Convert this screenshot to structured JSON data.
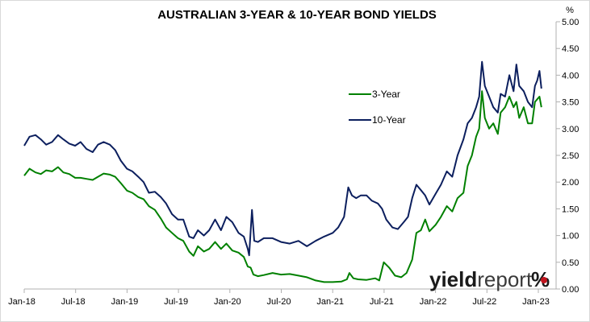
{
  "chart_data": {
    "type": "line",
    "title": "AUSTRALIAN 3-YEAR & 10-YEAR BOND YIELDS",
    "y_unit": "%",
    "xlabel": "",
    "ylabel": "",
    "ylim": [
      0,
      5
    ],
    "y_ticks": [
      "0.00",
      "0.50",
      "1.00",
      "1.50",
      "2.00",
      "2.50",
      "3.00",
      "3.50",
      "4.00",
      "4.50",
      "5.00"
    ],
    "x_ticks": [
      "Jan-18",
      "Jul-18",
      "Jan-19",
      "Jul-19",
      "Jan-20",
      "Jul-20",
      "Jan-21",
      "Jul-21",
      "Jan-22",
      "Jul-22",
      "Jan-23"
    ],
    "x_range": [
      "2018-01",
      "2023-01"
    ],
    "grid": false,
    "legend_position": "right-center",
    "colors": {
      "three_year": "#008000",
      "ten_year": "#0c1f5e",
      "logo_dark": "#1a1a1a",
      "logo_accent": "#c0141e"
    },
    "series": [
      {
        "name": "3-Year",
        "color": "#008000",
        "points": [
          [
            "2018-01-01",
            2.12
          ],
          [
            "2018-01-20",
            2.25
          ],
          [
            "2018-02-10",
            2.18
          ],
          [
            "2018-03-01",
            2.15
          ],
          [
            "2018-03-20",
            2.22
          ],
          [
            "2018-04-10",
            2.2
          ],
          [
            "2018-05-01",
            2.28
          ],
          [
            "2018-05-20",
            2.18
          ],
          [
            "2018-06-10",
            2.15
          ],
          [
            "2018-07-01",
            2.08
          ],
          [
            "2018-07-20",
            2.08
          ],
          [
            "2018-08-10",
            2.06
          ],
          [
            "2018-09-01",
            2.04
          ],
          [
            "2018-09-20",
            2.1
          ],
          [
            "2018-10-10",
            2.16
          ],
          [
            "2018-11-01",
            2.14
          ],
          [
            "2018-11-20",
            2.1
          ],
          [
            "2018-12-10",
            1.98
          ],
          [
            "2019-01-01",
            1.84
          ],
          [
            "2019-01-20",
            1.8
          ],
          [
            "2019-02-10",
            1.72
          ],
          [
            "2019-03-01",
            1.68
          ],
          [
            "2019-03-20",
            1.55
          ],
          [
            "2019-04-10",
            1.48
          ],
          [
            "2019-05-01",
            1.32
          ],
          [
            "2019-05-20",
            1.15
          ],
          [
            "2019-06-10",
            1.05
          ],
          [
            "2019-07-01",
            0.95
          ],
          [
            "2019-07-20",
            0.9
          ],
          [
            "2019-08-10",
            0.7
          ],
          [
            "2019-08-25",
            0.62
          ],
          [
            "2019-09-10",
            0.8
          ],
          [
            "2019-10-01",
            0.7
          ],
          [
            "2019-10-20",
            0.75
          ],
          [
            "2019-11-10",
            0.88
          ],
          [
            "2019-12-01",
            0.75
          ],
          [
            "2019-12-20",
            0.85
          ],
          [
            "2020-01-10",
            0.72
          ],
          [
            "2020-02-01",
            0.68
          ],
          [
            "2020-02-20",
            0.6
          ],
          [
            "2020-03-05",
            0.42
          ],
          [
            "2020-03-15",
            0.4
          ],
          [
            "2020-03-25",
            0.27
          ],
          [
            "2020-04-10",
            0.24
          ],
          [
            "2020-05-01",
            0.26
          ],
          [
            "2020-06-01",
            0.3
          ],
          [
            "2020-07-01",
            0.27
          ],
          [
            "2020-08-01",
            0.28
          ],
          [
            "2020-09-01",
            0.25
          ],
          [
            "2020-10-01",
            0.22
          ],
          [
            "2020-11-01",
            0.16
          ],
          [
            "2020-12-01",
            0.13
          ],
          [
            "2021-01-01",
            0.13
          ],
          [
            "2021-02-01",
            0.14
          ],
          [
            "2021-02-20",
            0.18
          ],
          [
            "2021-03-01",
            0.3
          ],
          [
            "2021-03-15",
            0.2
          ],
          [
            "2021-04-01",
            0.18
          ],
          [
            "2021-05-01",
            0.17
          ],
          [
            "2021-06-01",
            0.2
          ],
          [
            "2021-06-15",
            0.16
          ],
          [
            "2021-07-01",
            0.5
          ],
          [
            "2021-07-20",
            0.4
          ],
          [
            "2021-08-10",
            0.25
          ],
          [
            "2021-09-01",
            0.22
          ],
          [
            "2021-09-20",
            0.3
          ],
          [
            "2021-10-10",
            0.55
          ],
          [
            "2021-10-25",
            1.05
          ],
          [
            "2021-11-10",
            1.1
          ],
          [
            "2021-11-25",
            1.3
          ],
          [
            "2021-12-10",
            1.08
          ],
          [
            "2022-01-01",
            1.2
          ],
          [
            "2022-01-20",
            1.35
          ],
          [
            "2022-02-10",
            1.55
          ],
          [
            "2022-03-01",
            1.45
          ],
          [
            "2022-03-20",
            1.7
          ],
          [
            "2022-04-10",
            1.8
          ],
          [
            "2022-04-25",
            2.3
          ],
          [
            "2022-05-10",
            2.5
          ],
          [
            "2022-05-25",
            2.85
          ],
          [
            "2022-06-05",
            3.0
          ],
          [
            "2022-06-15",
            3.7
          ],
          [
            "2022-06-25",
            3.2
          ],
          [
            "2022-07-10",
            3.0
          ],
          [
            "2022-07-25",
            3.1
          ],
          [
            "2022-08-10",
            2.9
          ],
          [
            "2022-08-20",
            3.3
          ],
          [
            "2022-09-05",
            3.4
          ],
          [
            "2022-09-20",
            3.6
          ],
          [
            "2022-10-05",
            3.4
          ],
          [
            "2022-10-15",
            3.5
          ],
          [
            "2022-10-25",
            3.2
          ],
          [
            "2022-11-10",
            3.4
          ],
          [
            "2022-11-25",
            3.1
          ],
          [
            "2022-12-10",
            3.1
          ],
          [
            "2022-12-20",
            3.5
          ],
          [
            "2022-12-28",
            3.55
          ],
          [
            "2023-01-05",
            3.6
          ],
          [
            "2023-01-12",
            3.4
          ]
        ]
      },
      {
        "name": "10-Year",
        "color": "#0c1f5e",
        "points": [
          [
            "2018-01-01",
            2.68
          ],
          [
            "2018-01-20",
            2.85
          ],
          [
            "2018-02-10",
            2.88
          ],
          [
            "2018-03-01",
            2.8
          ],
          [
            "2018-03-20",
            2.7
          ],
          [
            "2018-04-10",
            2.75
          ],
          [
            "2018-05-01",
            2.88
          ],
          [
            "2018-05-20",
            2.8
          ],
          [
            "2018-06-10",
            2.72
          ],
          [
            "2018-07-01",
            2.68
          ],
          [
            "2018-07-20",
            2.75
          ],
          [
            "2018-08-10",
            2.62
          ],
          [
            "2018-09-01",
            2.56
          ],
          [
            "2018-09-20",
            2.7
          ],
          [
            "2018-10-10",
            2.75
          ],
          [
            "2018-11-01",
            2.7
          ],
          [
            "2018-11-20",
            2.6
          ],
          [
            "2018-12-10",
            2.4
          ],
          [
            "2019-01-01",
            2.25
          ],
          [
            "2019-01-20",
            2.2
          ],
          [
            "2019-02-10",
            2.1
          ],
          [
            "2019-03-01",
            2.0
          ],
          [
            "2019-03-20",
            1.8
          ],
          [
            "2019-04-10",
            1.82
          ],
          [
            "2019-05-01",
            1.72
          ],
          [
            "2019-05-20",
            1.6
          ],
          [
            "2019-06-10",
            1.4
          ],
          [
            "2019-07-01",
            1.3
          ],
          [
            "2019-07-20",
            1.3
          ],
          [
            "2019-08-10",
            0.98
          ],
          [
            "2019-08-25",
            0.95
          ],
          [
            "2019-09-10",
            1.1
          ],
          [
            "2019-10-01",
            1.0
          ],
          [
            "2019-10-20",
            1.1
          ],
          [
            "2019-11-10",
            1.3
          ],
          [
            "2019-12-01",
            1.1
          ],
          [
            "2019-12-20",
            1.35
          ],
          [
            "2020-01-10",
            1.25
          ],
          [
            "2020-02-01",
            1.05
          ],
          [
            "2020-02-20",
            0.98
          ],
          [
            "2020-03-05",
            0.75
          ],
          [
            "2020-03-10",
            0.63
          ],
          [
            "2020-03-20",
            1.48
          ],
          [
            "2020-03-28",
            0.9
          ],
          [
            "2020-04-10",
            0.88
          ],
          [
            "2020-05-01",
            0.95
          ],
          [
            "2020-06-01",
            0.95
          ],
          [
            "2020-07-01",
            0.88
          ],
          [
            "2020-08-01",
            0.85
          ],
          [
            "2020-09-01",
            0.9
          ],
          [
            "2020-10-01",
            0.8
          ],
          [
            "2020-11-01",
            0.9
          ],
          [
            "2020-12-01",
            0.98
          ],
          [
            "2021-01-01",
            1.05
          ],
          [
            "2021-01-20",
            1.15
          ],
          [
            "2021-02-10",
            1.35
          ],
          [
            "2021-02-25",
            1.9
          ],
          [
            "2021-03-10",
            1.75
          ],
          [
            "2021-03-25",
            1.7
          ],
          [
            "2021-04-10",
            1.75
          ],
          [
            "2021-05-01",
            1.75
          ],
          [
            "2021-05-20",
            1.65
          ],
          [
            "2021-06-10",
            1.6
          ],
          [
            "2021-06-25",
            1.5
          ],
          [
            "2021-07-10",
            1.3
          ],
          [
            "2021-08-01",
            1.15
          ],
          [
            "2021-08-20",
            1.12
          ],
          [
            "2021-09-10",
            1.25
          ],
          [
            "2021-09-25",
            1.35
          ],
          [
            "2021-10-10",
            1.7
          ],
          [
            "2021-10-25",
            1.95
          ],
          [
            "2021-11-10",
            1.85
          ],
          [
            "2021-11-25",
            1.75
          ],
          [
            "2021-12-10",
            1.58
          ],
          [
            "2022-01-01",
            1.78
          ],
          [
            "2022-01-20",
            1.95
          ],
          [
            "2022-02-10",
            2.2
          ],
          [
            "2022-03-01",
            2.1
          ],
          [
            "2022-03-20",
            2.5
          ],
          [
            "2022-04-10",
            2.8
          ],
          [
            "2022-04-25",
            3.1
          ],
          [
            "2022-05-10",
            3.2
          ],
          [
            "2022-05-25",
            3.4
          ],
          [
            "2022-06-05",
            3.6
          ],
          [
            "2022-06-15",
            4.25
          ],
          [
            "2022-06-25",
            3.8
          ],
          [
            "2022-07-10",
            3.6
          ],
          [
            "2022-07-25",
            3.4
          ],
          [
            "2022-08-10",
            3.3
          ],
          [
            "2022-08-20",
            3.65
          ],
          [
            "2022-09-05",
            3.6
          ],
          [
            "2022-09-20",
            4.0
          ],
          [
            "2022-10-05",
            3.7
          ],
          [
            "2022-10-15",
            4.2
          ],
          [
            "2022-10-25",
            3.8
          ],
          [
            "2022-11-10",
            3.7
          ],
          [
            "2022-11-25",
            3.5
          ],
          [
            "2022-12-10",
            3.4
          ],
          [
            "2022-12-20",
            3.8
          ],
          [
            "2022-12-28",
            3.9
          ],
          [
            "2023-01-05",
            4.08
          ],
          [
            "2023-01-12",
            3.75
          ]
        ]
      }
    ]
  },
  "logo": {
    "word_dark": "yield",
    "word_light": "report",
    "symbol": "%"
  }
}
